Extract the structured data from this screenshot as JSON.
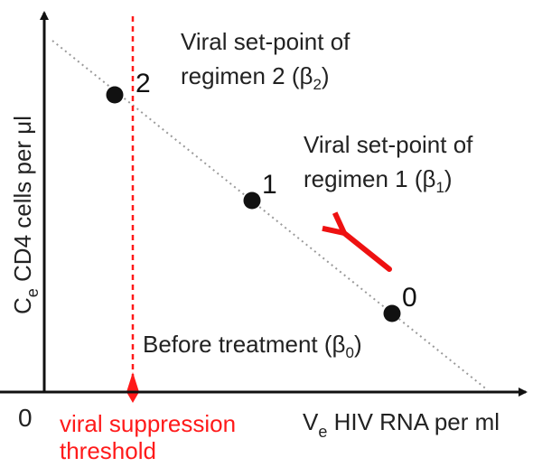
{
  "axes": {
    "origin": "0",
    "y_label_main": "C",
    "y_label_sub": "e",
    "y_label_rest": " CD4 cells per μl",
    "x_label_main": "V",
    "x_label_sub": "e",
    "x_label_rest": " HIV RNA per ml"
  },
  "threshold": {
    "line1": "viral suppression",
    "line2": "threshold",
    "color": "#ff1a1a"
  },
  "points": [
    {
      "id": "0",
      "label": "0"
    },
    {
      "id": "1",
      "label": "1"
    },
    {
      "id": "2",
      "label": "2"
    }
  ],
  "annotations": {
    "regimen2_line1": "Viral set-point of",
    "regimen2_line2_pre": "regimen 2 (β",
    "regimen2_sub": "2",
    "regimen2_post": ")",
    "regimen1_line1": "Viral set-point of",
    "regimen1_line2_pre": "regimen 1 (β",
    "regimen1_sub": "1",
    "regimen1_post": ")",
    "before_pre": "Before treatment (β",
    "before_sub": "0",
    "before_post": ")"
  },
  "colors": {
    "axis": "#111111",
    "point": "#111111",
    "trend_line": "#9a9a9a",
    "arrow": "#ee1111",
    "text": "#222222"
  }
}
